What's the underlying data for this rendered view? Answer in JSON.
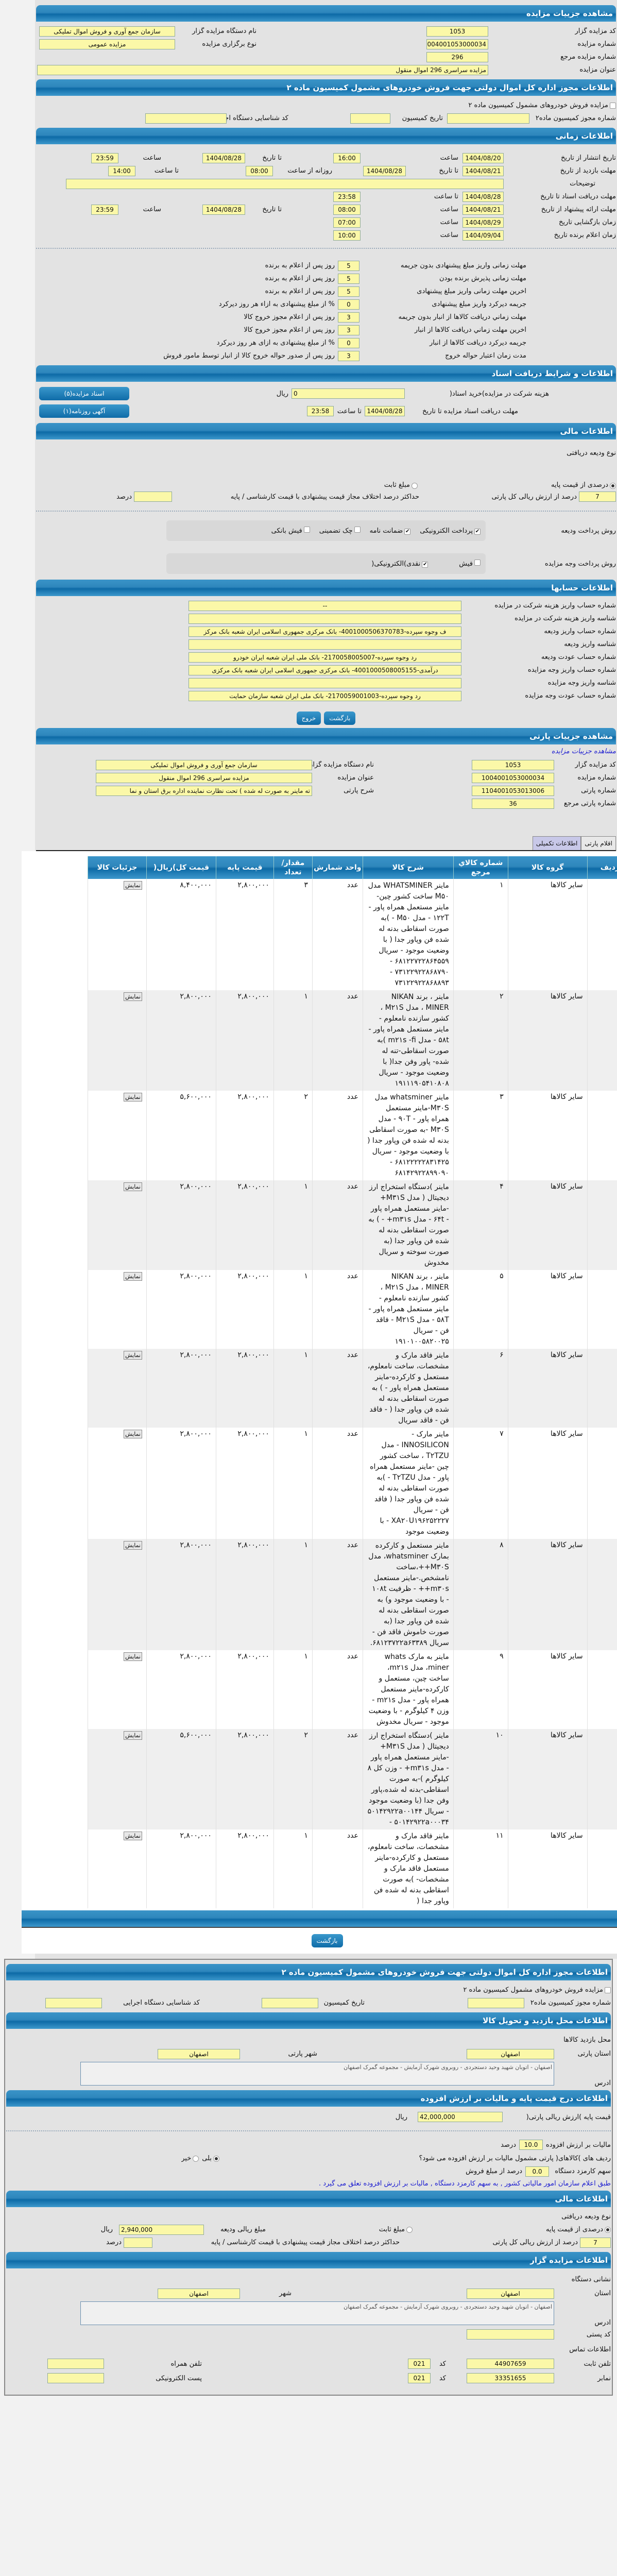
{
  "auction": {
    "title": "مشاهده جزییات مزایده",
    "code_label": "کد مزایده گزار",
    "code": "1053",
    "number_label": "شماره مزایده",
    "number": "1004001053000034",
    "ref_label": "شماره مزایده مرجع",
    "ref": "296",
    "name_label": "عنوان مزایده",
    "name": "مزایده سراسری 296 اموال منقول",
    "org_label": "نام دستگاه مزایده گزار",
    "org": "سازمان جمع آوری و فروش اموال تملیکی",
    "type_label": "نوع برگزاری مزایده",
    "type": "مزایده عمومی"
  },
  "permit": {
    "title": "اطلاعات مجوز اداره کل اموال دولتی جهت فروش خودروهای مشمول کمیسیون ماده ۲",
    "checkbox": "مزایده فروش خودروهای مشمول کمیسیون ماده ۲",
    "num_label": "شماره مجوز کمیسیون ماده۲",
    "date_label": "تاریخ کمیسیون",
    "code_label": "کد شناسایی دستگاه اجرایی"
  },
  "time": {
    "title": "اطلاعات زمانی",
    "publish": {
      "label": "تاریخ انتشار  از تاریخ",
      "from": "1404/08/20",
      "t1": "ساعت",
      "time1": "16:00",
      "to_label": "تا تاریخ",
      "to": "1404/08/28",
      "t2": "ساعت",
      "time2": "23:59"
    },
    "visit": {
      "label": "مهلت بازدید  از تاریخ",
      "from": "1404/08/21",
      "to_label": "تا تاریخ",
      "to": "1404/08/28",
      "daily": "روزانه از ساعت",
      "time1": "08:00",
      "t2": "تا ساعت",
      "time2": "14:00"
    },
    "notes_label": "توضیحات",
    "docs": {
      "label": "مهلت دریافت اسناد  تا تاریخ",
      "date": "1404/08/28",
      "t": "تا ساعت",
      "time": "23:58"
    },
    "offer": {
      "label": "مهلت ارائه پیشنهاد  از تاریخ",
      "from": "1404/08/21",
      "t1": "ساعت",
      "time1": "08:00",
      "to_label": "تا تاریخ",
      "to": "1404/08/28",
      "t2": "ساعت",
      "time2": "23:59"
    },
    "opening": {
      "label": "زمان بازگشایی     تاریخ",
      "date": "1404/08/29",
      "t": "ساعت",
      "time": "07:00"
    },
    "winner": {
      "label": "زمان اعلام برنده    تاریخ",
      "date": "1404/09/04",
      "t": "ساعت",
      "time": "10:00"
    }
  },
  "deadlines": [
    {
      "label": "مهلت زمانی واریز مبلغ پیشنهادی بدون جریمه",
      "value": "5",
      "suffix": "روز پس از اعلام به برنده"
    },
    {
      "label": "مهلت زمانی پذیرش برنده بودن",
      "value": "5",
      "suffix": "روز پس از اعلام به برنده"
    },
    {
      "label": "اخرین مهلت زمانی واریز مبلغ پیشنهادی",
      "value": "5",
      "suffix": "روز پس از اعلام به برنده"
    },
    {
      "label": "جریمه دیرکرد واریز مبلغ پیشنهادی",
      "value": "0",
      "suffix": "% از مبلغ پیشنهادی به ازاء هر روز دیرکرد"
    },
    {
      "label": "مهلت زماني دريافت كالاها از انبار بدون جريمه",
      "value": "3",
      "suffix": "روز پس از اعلام مجوز خروج کالا"
    },
    {
      "label": "آخرين مهلت زماني دريافت كالاها از انبار",
      "value": "3",
      "suffix": "روز پس از اعلام مجوز خروج کالا"
    },
    {
      "label": "جريمه ديركرد دريافت كالاها از انبار",
      "value": "0",
      "suffix": "% از مبلغ پیشنهادی به ازای هر روز دیرکرد"
    },
    {
      "label": "مدت زمان اعتبار حواله خروج",
      "value": "3",
      "suffix": "روز پس از صدور حواله خروج کالا از انبار توسط مامور فروش"
    }
  ],
  "docs": {
    "title": "اطلاعات و شرایط دریافت اسناد",
    "fee_label": "هزینه شرکت در مزایده)خرید اسناد(",
    "fee": "0",
    "fee_unit": "ریال",
    "deadline_label": "مهلت دریافت اسناد مزایده تا تاریخ",
    "date": "1404/08/28",
    "t": "تا ساعت",
    "time": "23:58",
    "btn_docs": "اسناد مزایده(۵)",
    "btn_ad": "آگهی روزنامه(۱)"
  },
  "finance": {
    "title": "اطلاعات مالی",
    "deposit_type": "نوع ودیعه دریافتی",
    "opt_percent": "درصدی از قیمت پایه",
    "opt_fixed": "مبلغ ثابت",
    "percent": "7",
    "percent_label": "درصد از ارزش ریالی کل پارتی",
    "maxdiff_label": "حداکثر درصد اختلاف مجاز قیمت پیشنهادی با قیمت کارشناسی / پایه",
    "maxdiff": "",
    "percent_unit": "درصد"
  },
  "payment": {
    "deposit_label": "روش پرداخت ودیعه",
    "deposit_opts": [
      {
        "label": "پرداخت الکترونیکی",
        "checked": true
      },
      {
        "label": "ضمانت نامه",
        "checked": true
      },
      {
        "label": "چک تضمینی",
        "checked": false
      },
      {
        "label": "فیش بانکی",
        "checked": false
      }
    ],
    "auction_label": "روش پرداخت وجه مزایده",
    "auction_opts": [
      {
        "label": "فیش",
        "checked": false
      },
      {
        "label": "نقدی)الکترونیکی(",
        "checked": true
      }
    ]
  },
  "accounts": {
    "title": "اطلاعات حسابها",
    "rows": [
      {
        "label": "شماره حساب واریز هزینه شرکت در مزایده",
        "value": "--"
      },
      {
        "label": "شناسه واریز هزینه شرکت در مزایده",
        "value": ""
      },
      {
        "label": "شماره حساب واریز ودیعه",
        "value": "ف وجوه سپرده-4001000506370783- بانک مرکزی جمهوری اسلامی ایران شعبه بانک مرکز"
      },
      {
        "label": "شناسه واریز ودیعه",
        "value": ""
      },
      {
        "label": "شماره حساب عودت ودیعه",
        "value": "رد وجوه سپرده-2170058005007- بانک ملی ایران شعبه ایران خودرو"
      },
      {
        "label": "شماره حساب واریز وجه مزایده",
        "value": "درآمدی-4001000508005155- بانک مرکزی جمهوری اسلامی ایران شعبه بانک مرکزی"
      },
      {
        "label": "شناسه واریز وجه مزایده",
        "value": ""
      },
      {
        "label": "شماره حساب عودت وجه مزایده",
        "value": "رد وجوه سپرده-2170059001003- بانک ملی ایران شعبه سازمان حمایت"
      }
    ]
  },
  "buttons": {
    "back": "بازگشت",
    "exit": "خروج"
  },
  "lot": {
    "title": "مشاهده جزییات پارتی",
    "subtitle": "مشاهده جزییات مزایده",
    "code_label": "کد مزایده گزار",
    "code": "1053",
    "number_label": "شماره مزایده",
    "number": "1004001053000034",
    "lot_label": "شماره پارتی",
    "lot": "1104001053013006",
    "lotref_label": "شماره پارتی مرجع",
    "lotref": "36",
    "org_label": "نام دستگاه مزایده گزار",
    "org": "سازمان جمع آوری و فروش اموال تملیکی",
    "name_label": "عنوان مزایده",
    "name": "مزایده سراسری 296 اموال منقول",
    "desc_label": "شرح پارتی",
    "desc": "ته ماینر به صورت له شده ) تحت نظارت نماینده اداره برق استان و نما"
  },
  "tabs": [
    {
      "label": "اقلام پارتی",
      "active": true
    },
    {
      "label": "اطلاعات تکمیلی",
      "active": false
    }
  ],
  "table": {
    "headers": [
      "ردیف",
      "گروه کالا",
      "شماره کالاي مرجع",
      "شرح کالا",
      "واحد شمارش",
      "مقدار/ تعداد",
      "قیمت پایه",
      "قیمت کل)ریال(",
      "جزئیات کالا"
    ],
    "show_label": "نمایش"
  },
  "items": [
    {
      "row": "۱",
      "group": "سایر کالاها",
      "ref": "۱",
      "desc": "ماینر WHATSMINER مدل M۵۰ ساخت کشور چین-ماینر مستعمل همراه پاور - ۱۲۲T - مدل M۵۰ - )به صورت اسقاطی بدنه له شده فن وپاور جدا ( با وضعیت موجود - سریال ۶۸۱۲۲۷۲۲۸۶۴۵۵۹ - ۷۳۱۲۲۹۲۲۸۶۸۷۹۰ - ۷۳۱۲۲۹۲۲۸۶۸۸۹۳",
      "unit": "عدد",
      "qty": "۳",
      "base": "۲,۸۰۰,۰۰۰",
      "total": "۸,۴۰۰,۰۰۰"
    },
    {
      "row": "۲",
      "group": "سایر کالاها",
      "ref": "۲",
      "desc": "ماینر ، برند NIKAN MINER ، مدل M۲۱S ، کشور سازنده نامعلوم - ماینر مستعمل همراه پاور - ۵۸t - مدل m۲۱s -fi )به صورت اسقاطی-تنه له شده- پاور وفن جدا( با وضعیت موجود - سریال ۱۹۱۱۱۹۰۵۴۱۰۸۰۸",
      "unit": "عدد",
      "qty": "۱",
      "base": "۲,۸۰۰,۰۰۰",
      "total": "۲,۸۰۰,۰۰۰"
    },
    {
      "row": "۳",
      "group": "سایر کالاها",
      "ref": "۳",
      "desc": "ماینر whatsminer مدل M۳۰S-ماینر مستعمل همراه پاور - ۹۰T - مدل M۳۰S -به صورت اسقاطی بدنه له شده فن وپاور جدا ( با وضعیت موجود - سریال ۶۸۱۲۲۲۲۲۸۳۱۴۲۵ - ۶۸۱۴۲۹۲۲۸۹۹۰۹۰",
      "unit": "عدد",
      "qty": "۲",
      "base": "۲,۸۰۰,۰۰۰",
      "total": "۵,۶۰۰,۰۰۰"
    },
    {
      "row": "۴",
      "group": "سایر کالاها",
      "ref": "۴",
      "desc": "ماینر )دستگاه استخراج ارز دیجیتال ( مدل M۳۱S+ -ماینر مستعمل همراه پاور - ۶۴t - مدل m۳۱s+ - ) به صورت اسقاطی بدنه له شده فن وپاور جدا (به صورت سوخته و سریال مخدوش",
      "unit": "عدد",
      "qty": "۱",
      "base": "۲,۸۰۰,۰۰۰",
      "total": "۲,۸۰۰,۰۰۰"
    },
    {
      "row": "۵",
      "group": "سایر کالاها",
      "ref": "۵",
      "desc": "ماینر ، برند NIKAN MINER ، مدل M۲۱S ، کشور سازنده نامعلوم - ماینر مستعمل همراه پاور - ۵۸T - مدل M۲۱S - فاقد فن - سریال ۱۹۱۰۱۰۰۵۸۲۰۰۲۵",
      "unit": "عدد",
      "qty": "۱",
      "base": "۲,۸۰۰,۰۰۰",
      "total": "۲,۸۰۰,۰۰۰"
    },
    {
      "row": "۶",
      "group": "سایر کالاها",
      "ref": "۶",
      "desc": "ماینر فاقد مارک و مشخصات، ساخت نامعلوم، مستعمل و کارکرده-ماینر مستعمل همراه پاور - ) به صورت اسقاطی بدنه له شده فن وپاور جدا ( - فاقد فن - فاقد سریال",
      "unit": "عدد",
      "qty": "۱",
      "base": "۲,۸۰۰,۰۰۰",
      "total": "۲,۸۰۰,۰۰۰"
    },
    {
      "row": "۷",
      "group": "سایر کالاها",
      "ref": "۷",
      "desc": "ماینر مارک - INNOSILICON - مدل T۲TZU ، ساخت کشور چین -ماینر مستعمل همراه پاور - مدل T۲TZU - )به صورت اسقاطی بدنه له شده فن وپاور جدا ( فاقد فن - سریال XA۲۰U۱۹۶۲۵۲۲۲۷ - با وضعیت موجود",
      "unit": "عدد",
      "qty": "۱",
      "base": "۲,۸۰۰,۰۰۰",
      "total": "۲,۸۰۰,۰۰۰"
    },
    {
      "row": "۸",
      "group": "سایر کالاها",
      "ref": "۸",
      "desc": "ماینر مستعمل و کارکرده بمارک whatsminer، مدل M۳۰S++،ساخت نامشخص.-ماینر مستعمل m۳۰s++ - ظرفیت ۱۰۸t - با وضعیت موجود و) به صورت اسقاطی بدنه له شده فن وپاور جدا (به صورت خاموش فاقد فن - سریال ۶۸۱۲۳۷۲۲a۶۳۳۸۹.",
      "unit": "عدد",
      "qty": "۱",
      "base": "۲,۸۰۰,۰۰۰",
      "total": "۲,۸۰۰,۰۰۰"
    },
    {
      "row": "۹",
      "group": "سایر کالاها",
      "ref": "۹",
      "desc": "ماینر به مارک whats miner، مدل m۲۱s، ساخت چین، مستعمل و کارکرده-ماینر مستعمل همراه پاور - مدل m۲۱s - وزن ۴ کیلوگرم - با وضعیت موجود - سریال مخدوش",
      "unit": "عدد",
      "qty": "۱",
      "base": "۲,۸۰۰,۰۰۰",
      "total": "۲,۸۰۰,۰۰۰"
    },
    {
      "row": "۱۰",
      "group": "سایر کالاها",
      "ref": "۱۰",
      "desc": "ماینر )دستگاه استخراج ارز دیجیتال ( مدل M۳۱S+ -ماینر مستعمل همراه پاور - مدل m۳۱s+ - وزن کل ۸ کیلوگرم )-به صورت اسقاطی-بدنه له شده،پاور وفن جدا (با وضعیت موجود - سریال ۵۰۱۴۲۹۲۲a۰۰۱۴۴ - ۵۰۱۴۲۹۲۲a۰۰۰۳۴",
      "unit": "عدد",
      "qty": "۲",
      "base": "۲,۸۰۰,۰۰۰",
      "total": "۵,۶۰۰,۰۰۰"
    },
    {
      "row": "۱۱",
      "group": "سایر کالاها",
      "ref": "۱۱",
      "desc": "ماینر فاقد مارک و مشخصات، ساخت نامعلوم، مستعمل و کارکرده-ماینر مستعمل فاقد مارک و مشخصات- )به صورت اسقاطی بدنه له شده فن وپاور جدا (",
      "unit": "عدد",
      "qty": "۱",
      "base": "۲,۸۰۰,۰۰۰",
      "total": "۲,۸۰۰,۰۰۰"
    }
  ],
  "visit": {
    "title": "اطلاعات محل بازدید و تحویل کالا",
    "place": "محل بازدید کالاها",
    "prov_label": "استان پارتی",
    "prov": "اصفهان",
    "city_label": "شهر پارتی",
    "city": "اصفهان",
    "addr_label": "آدرس",
    "addr": "اصفهان - اتوبان شهید وحید دستجردی - روبروی شهرک آزمایش - مجموعه گمرک اصفهان"
  },
  "tax": {
    "title": "اطلاعات درج قیمت پایه و مالیات بر ارزش افزوده",
    "base_label": "قیمت پایه )ارزش ریالی پارتی(",
    "base": "42,000,000",
    "base_unit": "ریال",
    "vat_label": "مالیات بر ارزش افزوده",
    "vat": "10.0",
    "vat_unit": "درصد",
    "q": "ردیف های )کالاهای( پارتی مشمول مالیات بر ارزش افزوده می شود؟",
    "yes": "بلی",
    "no": "خیر",
    "fee_label": "سهم کارمزد دستگاه",
    "fee": "0.0",
    "fee_unit": "درصد از مبلغ فروش",
    "note": "طبق اعلام سازمان امور مالیاتی کشور , به سهم کارمزد دستگاه , مالیات بر ارزش افزوده تعلق می گیرد ."
  },
  "finance2": {
    "amount_label": "مبلغ ریالی ودیعه",
    "amount": "2,940,000",
    "amount_unit": "ریال"
  },
  "org": {
    "title": "اطلاعات مزایده گزار",
    "address_head": "نشانی دستگاه",
    "prov_label": "استان",
    "prov": "اصفهان",
    "city_label": "شهر",
    "city": "اصفهان",
    "addr_label": "آدرس",
    "addr": "اصفهان - اتوبان شهید وحید دستجردی - روبروی شهرک آزمایش - مجموعه گمرک اصفهان",
    "postal_label": "کد پستی",
    "postal": "",
    "contact": "اطلاعات تماس",
    "phone_label": "تلفن ثابت",
    "phone": "44907659",
    "code_label": "کد",
    "phone_code": "021",
    "mobile_label": "تلفن همراه",
    "mobile": "",
    "fax_label": "نمابر",
    "fax": "33351655",
    "fax_code": "021",
    "email_label": "پست الکترونیکی",
    "email": ""
  }
}
